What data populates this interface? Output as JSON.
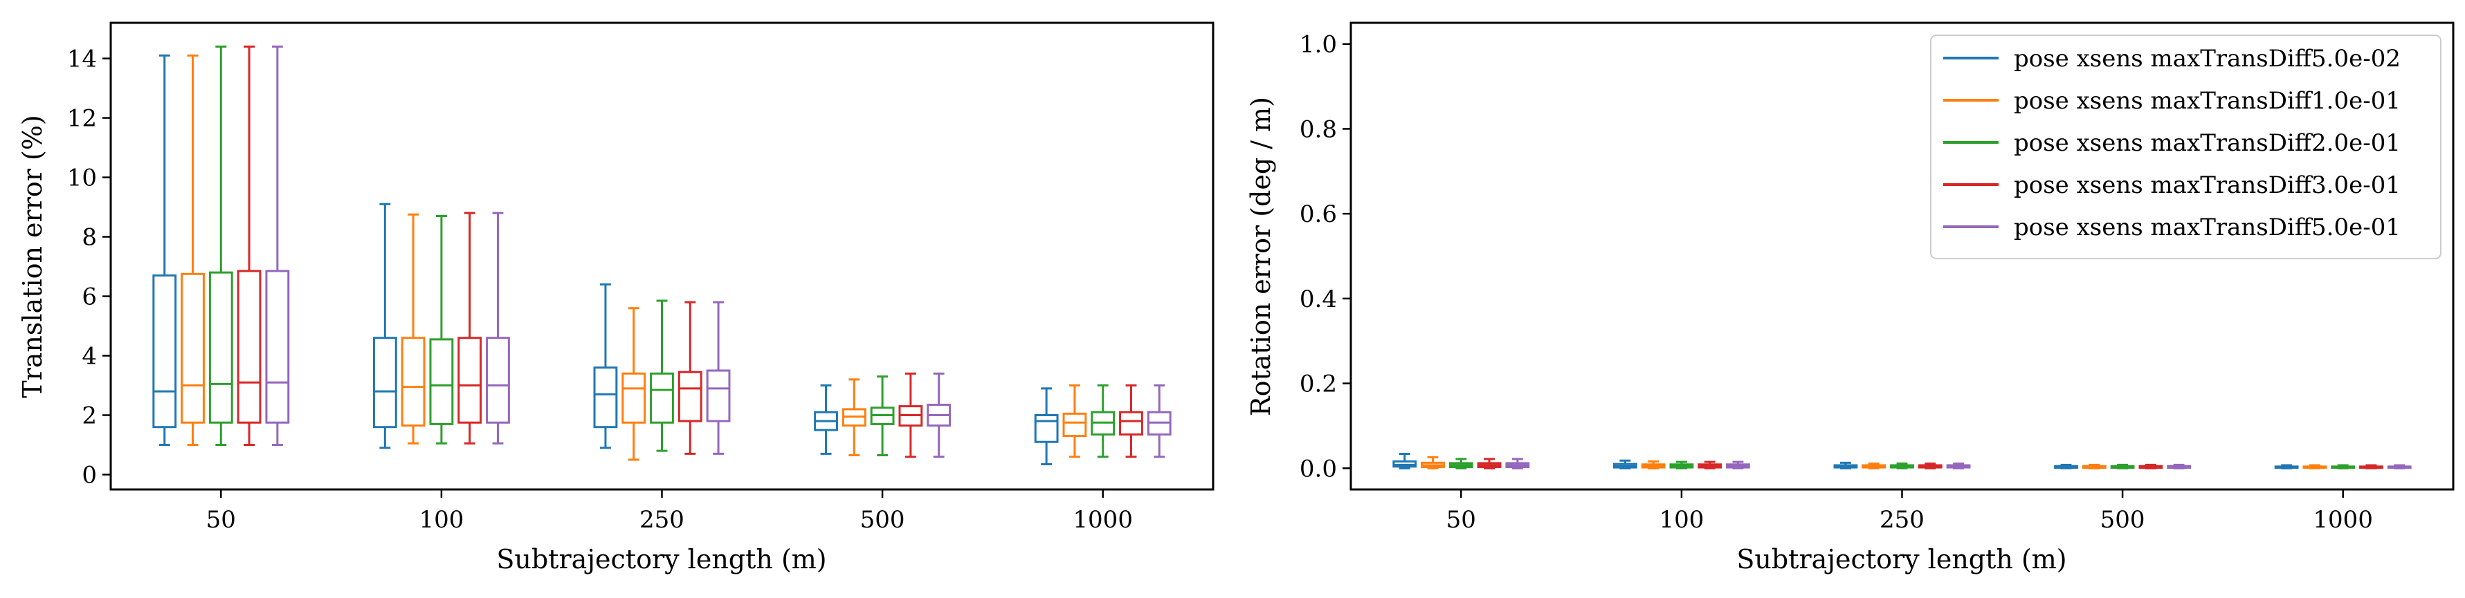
{
  "series_colors": [
    "#1f77b4",
    "#ff7f0e",
    "#2ca02c",
    "#d62728",
    "#9467bd"
  ],
  "legend": [
    "pose xsens maxTransDiff5.0e-02",
    "pose xsens maxTransDiff1.0e-01",
    "pose xsens maxTransDiff2.0e-01",
    "pose xsens maxTransDiff3.0e-01",
    "pose xsens maxTransDiff5.0e-01"
  ],
  "chart_data": [
    {
      "type": "box",
      "xlabel": "Subtrajectory length (m)",
      "ylabel": "Translation error (%)",
      "categories": [
        "50",
        "100",
        "250",
        "500",
        "1000"
      ],
      "ylim": [
        -0.5,
        15.2
      ],
      "yticks": [
        0,
        2,
        4,
        6,
        8,
        10,
        12,
        14
      ],
      "ytick_labels": [
        "0",
        "2",
        "4",
        "6",
        "8",
        "10",
        "12",
        "14"
      ],
      "series": [
        {
          "name": "pose xsens maxTransDiff5.0e-02",
          "boxes": [
            [
              1.0,
              1.6,
              2.8,
              6.7,
              14.1
            ],
            [
              0.9,
              1.6,
              2.8,
              4.6,
              9.1
            ],
            [
              0.9,
              1.6,
              2.7,
              3.6,
              6.4
            ],
            [
              0.7,
              1.5,
              1.8,
              2.1,
              3.0
            ],
            [
              0.35,
              1.1,
              1.8,
              2.0,
              2.9
            ]
          ]
        },
        {
          "name": "pose xsens maxTransDiff1.0e-01",
          "boxes": [
            [
              1.0,
              1.75,
              3.0,
              6.75,
              14.1
            ],
            [
              1.05,
              1.65,
              2.95,
              4.6,
              8.75
            ],
            [
              0.5,
              1.75,
              2.9,
              3.4,
              5.6
            ],
            [
              0.65,
              1.65,
              1.95,
              2.2,
              3.2
            ],
            [
              0.6,
              1.3,
              1.75,
              2.05,
              3.0
            ]
          ]
        },
        {
          "name": "pose xsens maxTransDiff2.0e-01",
          "boxes": [
            [
              1.0,
              1.75,
              3.05,
              6.8,
              14.4
            ],
            [
              1.05,
              1.7,
              3.0,
              4.55,
              8.7
            ],
            [
              0.8,
              1.75,
              2.85,
              3.4,
              5.85
            ],
            [
              0.65,
              1.7,
              2.0,
              2.25,
              3.3
            ],
            [
              0.6,
              1.35,
              1.75,
              2.1,
              3.0
            ]
          ]
        },
        {
          "name": "pose xsens maxTransDiff3.0e-01",
          "boxes": [
            [
              1.0,
              1.75,
              3.1,
              6.85,
              14.4
            ],
            [
              1.05,
              1.75,
              3.0,
              4.6,
              8.8
            ],
            [
              0.7,
              1.8,
              2.9,
              3.45,
              5.8
            ],
            [
              0.6,
              1.65,
              2.0,
              2.3,
              3.4
            ],
            [
              0.6,
              1.35,
              1.8,
              2.1,
              3.0
            ]
          ]
        },
        {
          "name": "pose xsens maxTransDiff5.0e-01",
          "boxes": [
            [
              1.0,
              1.75,
              3.1,
              6.85,
              14.4
            ],
            [
              1.05,
              1.75,
              3.0,
              4.6,
              8.8
            ],
            [
              0.7,
              1.8,
              2.9,
              3.5,
              5.8
            ],
            [
              0.6,
              1.65,
              2.0,
              2.35,
              3.4
            ],
            [
              0.6,
              1.35,
              1.75,
              2.1,
              3.0
            ]
          ]
        }
      ]
    },
    {
      "type": "box",
      "xlabel": "Subtrajectory length (m)",
      "ylabel": "Rotation error (deg / m)",
      "categories": [
        "50",
        "100",
        "250",
        "500",
        "1000"
      ],
      "ylim": [
        -0.05,
        1.05
      ],
      "yticks": [
        0.0,
        0.2,
        0.4,
        0.6,
        0.8,
        1.0
      ],
      "ytick_labels": [
        "0.0",
        "0.2",
        "0.4",
        "0.6",
        "0.8",
        "1.0"
      ],
      "legend_position": "upper right",
      "series": [
        {
          "name": "pose xsens maxTransDiff5.0e-02",
          "boxes": [
            [
              0.0,
              0.004,
              0.008,
              0.016,
              0.034
            ],
            [
              0.0,
              0.002,
              0.005,
              0.01,
              0.018
            ],
            [
              0.0,
              0.002,
              0.004,
              0.007,
              0.013
            ],
            [
              0.0,
              0.001,
              0.003,
              0.005,
              0.008
            ],
            [
              0.0,
              0.001,
              0.002,
              0.004,
              0.007
            ]
          ]
        },
        {
          "name": "pose xsens maxTransDiff1.0e-01",
          "boxes": [
            [
              0.0,
              0.003,
              0.007,
              0.013,
              0.026
            ],
            [
              0.0,
              0.002,
              0.005,
              0.009,
              0.016
            ],
            [
              0.0,
              0.002,
              0.004,
              0.007,
              0.011
            ],
            [
              0.0,
              0.001,
              0.003,
              0.005,
              0.008
            ],
            [
              0.0,
              0.001,
              0.002,
              0.004,
              0.007
            ]
          ]
        },
        {
          "name": "pose xsens maxTransDiff2.0e-01",
          "boxes": [
            [
              0.0,
              0.003,
              0.007,
              0.012,
              0.022
            ],
            [
              0.0,
              0.002,
              0.005,
              0.009,
              0.015
            ],
            [
              0.0,
              0.002,
              0.004,
              0.007,
              0.011
            ],
            [
              0.0,
              0.001,
              0.003,
              0.005,
              0.008
            ],
            [
              0.0,
              0.001,
              0.002,
              0.004,
              0.007
            ]
          ]
        },
        {
          "name": "pose xsens maxTransDiff3.0e-01",
          "boxes": [
            [
              0.0,
              0.003,
              0.007,
              0.012,
              0.022
            ],
            [
              0.0,
              0.002,
              0.005,
              0.009,
              0.015
            ],
            [
              0.0,
              0.002,
              0.004,
              0.007,
              0.011
            ],
            [
              0.0,
              0.001,
              0.003,
              0.005,
              0.008
            ],
            [
              0.0,
              0.001,
              0.002,
              0.004,
              0.007
            ]
          ]
        },
        {
          "name": "pose xsens maxTransDiff5.0e-01",
          "boxes": [
            [
              0.0,
              0.003,
              0.007,
              0.012,
              0.022
            ],
            [
              0.0,
              0.002,
              0.005,
              0.009,
              0.015
            ],
            [
              0.0,
              0.002,
              0.004,
              0.007,
              0.011
            ],
            [
              0.0,
              0.001,
              0.003,
              0.005,
              0.008
            ],
            [
              0.0,
              0.001,
              0.002,
              0.004,
              0.007
            ]
          ]
        }
      ]
    }
  ]
}
